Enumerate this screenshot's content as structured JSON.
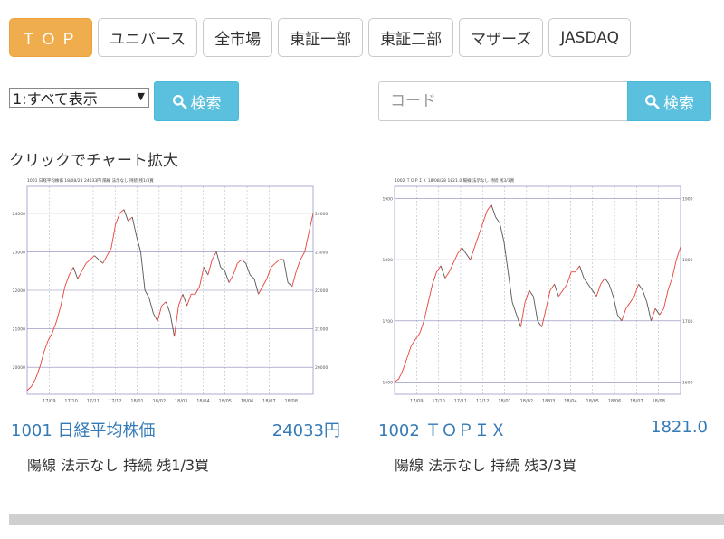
{
  "tabs": [
    {
      "label": "ＴＯＰ",
      "active": true
    },
    {
      "label": "ユニバース"
    },
    {
      "label": "全市場"
    },
    {
      "label": "東証一部"
    },
    {
      "label": "東証二部"
    },
    {
      "label": "マザーズ"
    },
    {
      "label": "JASDAQ"
    }
  ],
  "filter": {
    "selected": "1:すべて表示"
  },
  "search_left": {
    "label": "検索"
  },
  "code_search": {
    "placeholder": "コード",
    "label": "検索"
  },
  "hint": "クリックでチャート拡大",
  "colors": {
    "accent": "#f0ad4e",
    "search": "#5bc0de",
    "link": "#337ab7",
    "up": "#e8423a",
    "down": "#555555",
    "grid": "#9999cc"
  },
  "charts": [
    {
      "header": "1001 日経平均株価 18/08/28 24033円 陽線 法示なし 持続 残1/3買",
      "name": "1001 日経平均株価",
      "price": "24033円",
      "status": "陽線 法示なし 持続 残1/3買",
      "y_ticks": [
        "24000",
        "23000",
        "22000",
        "21000",
        "20000"
      ],
      "x_ticks": [
        "17/09",
        "17/10",
        "17/11",
        "17/12",
        "18/01",
        "18/02",
        "18/03",
        "18/04",
        "18/05",
        "18/06",
        "18/07",
        "18/08"
      ],
      "chart_data": {
        "type": "line",
        "ylim": [
          19300,
          24700
        ],
        "values": [
          19400,
          19500,
          19700,
          20000,
          20400,
          20700,
          20900,
          21200,
          21600,
          22100,
          22400,
          22600,
          22300,
          22500,
          22700,
          22800,
          22900,
          22800,
          22700,
          22900,
          23100,
          23700,
          24000,
          24100,
          23800,
          23900,
          23400,
          23000,
          22000,
          21800,
          21400,
          21200,
          21600,
          21700,
          21400,
          20800,
          21600,
          21900,
          21600,
          21900,
          21900,
          22100,
          22600,
          22400,
          22800,
          23000,
          22600,
          22500,
          22200,
          22400,
          22700,
          22800,
          22700,
          22400,
          22300,
          21900,
          22100,
          22300,
          22600,
          22700,
          22800,
          22800,
          22200,
          22100,
          22500,
          22800,
          23000,
          23500,
          24000
        ]
      }
    },
    {
      "header": "1002 ＴＯＰＩＸ 18/08/28 1821.0 陽線 法示なし 持続 残3/3買",
      "name": "1002 ＴＯＰＩＸ",
      "price": "1821.0",
      "status": "陽線 法示なし 持続 残3/3買",
      "y_ticks": [
        "1900",
        "1800",
        "1700",
        "1600"
      ],
      "x_ticks": [
        "17/09",
        "17/10",
        "17/11",
        "17/12",
        "18/01",
        "18/02",
        "18/03",
        "18/04",
        "18/05",
        "18/06",
        "18/07",
        "18/08"
      ],
      "chart_data": {
        "type": "line",
        "ylim": [
          1580,
          1920
        ],
        "values": [
          1600,
          1605,
          1620,
          1640,
          1660,
          1670,
          1680,
          1700,
          1730,
          1760,
          1780,
          1790,
          1770,
          1780,
          1795,
          1810,
          1820,
          1810,
          1800,
          1820,
          1840,
          1860,
          1880,
          1890,
          1870,
          1860,
          1830,
          1780,
          1730,
          1710,
          1690,
          1730,
          1750,
          1740,
          1700,
          1690,
          1720,
          1750,
          1760,
          1740,
          1750,
          1760,
          1780,
          1780,
          1790,
          1770,
          1760,
          1750,
          1740,
          1760,
          1770,
          1760,
          1740,
          1710,
          1700,
          1720,
          1730,
          1740,
          1760,
          1750,
          1730,
          1700,
          1720,
          1710,
          1720,
          1750,
          1770,
          1800,
          1821
        ]
      }
    }
  ]
}
